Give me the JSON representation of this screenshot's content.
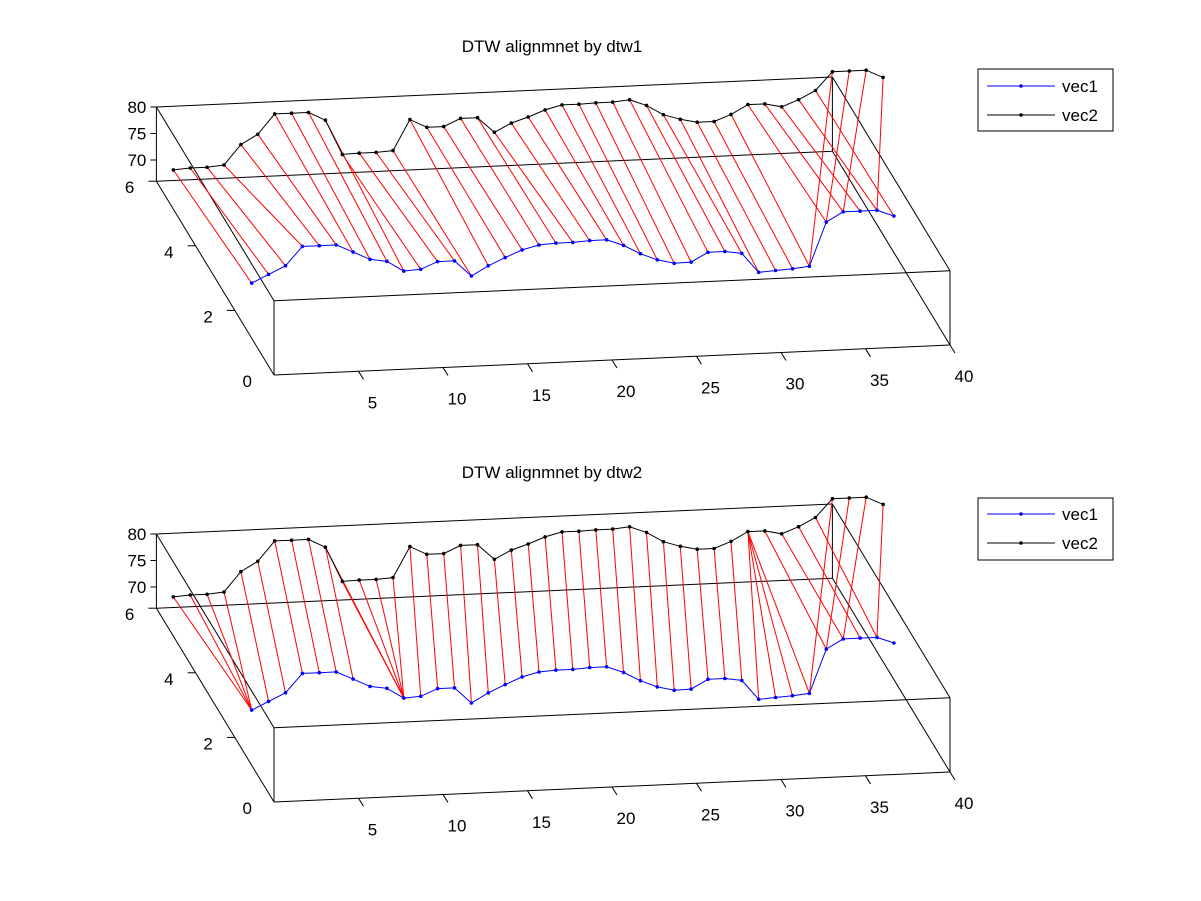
{
  "chart_data": [
    {
      "type": "line",
      "title": "DTW alignmnet by dtw1",
      "legend": {
        "placement": "top-right",
        "entries": [
          "vec1",
          "vec2"
        ]
      },
      "x_ticks": [
        "5",
        "10",
        "15",
        "20",
        "25",
        "30",
        "35",
        "40"
      ],
      "y_ticks": [
        "0",
        "2",
        "4",
        "6"
      ],
      "z_ticks": [
        "70",
        "75",
        "80"
      ],
      "xlim": [
        0,
        40
      ],
      "ylim": [
        0,
        6
      ],
      "zlim": [
        66,
        80
      ],
      "series": [
        {
          "name": "vec1",
          "color": "#0000ff",
          "y": 2,
          "values": [
            71,
            72.5,
            74,
            77.5,
            77.5,
            77.5,
            76,
            74.5,
            74,
            72,
            72.2,
            73.5,
            73.5,
            70.5,
            72.3,
            73.7,
            75,
            75.8,
            76,
            76,
            76.2,
            76.2,
            75,
            73.3,
            72,
            71.2,
            71.3,
            73,
            73,
            72.5,
            68.8,
            69,
            69.2,
            69.5,
            77.7,
            79.5,
            79.5,
            79.5,
            78.3
          ]
        },
        {
          "name": "vec2",
          "color": "#000000",
          "y": 6,
          "values": [
            68,
            68.2,
            68.2,
            68.5,
            72.2,
            74,
            77.7,
            77.7,
            77.7,
            76.1,
            69.5,
            69.6,
            69.6,
            69.8,
            75.5,
            73.9,
            73.9,
            75.3,
            75.3,
            72.4,
            74,
            75,
            76.2,
            77,
            77,
            77.1,
            77.1,
            77.4,
            76.2,
            74.3,
            73.3,
            72.6,
            72.6,
            73.8,
            75.5,
            75.5,
            74.8,
            76,
            77.6,
            81,
            81,
            81,
            79.5
          ]
        }
      ],
      "alignment_color": "#ff0000",
      "alignment": [
        [
          0,
          0
        ],
        [
          1,
          1
        ],
        [
          2,
          2
        ],
        [
          3,
          3
        ],
        [
          4,
          4
        ],
        [
          5,
          5
        ],
        [
          6,
          6
        ],
        [
          7,
          7
        ],
        [
          8,
          8
        ],
        [
          9,
          9
        ],
        [
          10,
          10
        ],
        [
          11,
          11
        ],
        [
          12,
          12
        ],
        [
          13,
          13
        ],
        [
          14,
          14
        ],
        [
          15,
          15
        ],
        [
          16,
          16
        ],
        [
          17,
          17
        ],
        [
          18,
          18
        ],
        [
          19,
          19
        ],
        [
          20,
          20
        ],
        [
          21,
          21
        ],
        [
          22,
          22
        ],
        [
          23,
          23
        ],
        [
          24,
          24
        ],
        [
          25,
          25
        ],
        [
          26,
          26
        ],
        [
          27,
          27
        ],
        [
          28,
          28
        ],
        [
          29,
          29
        ],
        [
          30,
          30
        ],
        [
          31,
          31
        ],
        [
          32,
          32
        ],
        [
          33,
          33
        ],
        [
          34,
          34
        ],
        [
          35,
          35
        ],
        [
          36,
          36
        ],
        [
          37,
          37
        ],
        [
          38,
          38
        ],
        [
          33,
          39
        ],
        [
          34,
          40
        ],
        [
          35,
          41
        ],
        [
          37,
          42
        ]
      ]
    },
    {
      "type": "line",
      "title": "DTW alignmnet by dtw2",
      "legend": {
        "placement": "top-right",
        "entries": [
          "vec1",
          "vec2"
        ]
      },
      "x_ticks": [
        "5",
        "10",
        "15",
        "20",
        "25",
        "30",
        "35",
        "40"
      ],
      "y_ticks": [
        "0",
        "2",
        "4",
        "6"
      ],
      "z_ticks": [
        "70",
        "75",
        "80"
      ],
      "xlim": [
        0,
        40
      ],
      "ylim": [
        0,
        6
      ],
      "zlim": [
        66,
        80
      ],
      "series": [
        {
          "name": "vec1",
          "color": "#0000ff",
          "y": 2,
          "values": [
            71,
            72.5,
            74,
            77.5,
            77.5,
            77.5,
            76,
            74.5,
            74,
            72,
            72.2,
            73.5,
            73.5,
            70.5,
            72.3,
            73.7,
            75,
            75.8,
            76,
            76,
            76.2,
            76.2,
            75,
            73.3,
            72,
            71.2,
            71.3,
            73,
            73,
            72.5,
            68.8,
            69,
            69.2,
            69.5,
            77.7,
            79.5,
            79.5,
            79.5,
            78.3
          ]
        },
        {
          "name": "vec2",
          "color": "#000000",
          "y": 6,
          "values": [
            68,
            68.2,
            68.2,
            68.5,
            72.2,
            74,
            77.7,
            77.7,
            77.7,
            76.1,
            69.5,
            69.6,
            69.6,
            69.8,
            75.5,
            73.9,
            73.9,
            75.3,
            75.3,
            72.4,
            74,
            75,
            76.2,
            77,
            77,
            77.1,
            77.1,
            77.4,
            76.2,
            74.3,
            73.3,
            72.6,
            72.6,
            73.8,
            75.5,
            75.5,
            74.8,
            76,
            77.6,
            81,
            81,
            81,
            79.5
          ]
        }
      ],
      "alignment_color": "#ff0000",
      "alignment": [
        [
          0,
          0
        ],
        [
          0,
          1
        ],
        [
          0,
          2
        ],
        [
          0,
          3
        ],
        [
          1,
          4
        ],
        [
          2,
          5
        ],
        [
          3,
          6
        ],
        [
          4,
          7
        ],
        [
          5,
          8
        ],
        [
          6,
          9
        ],
        [
          9,
          9
        ],
        [
          9,
          10
        ],
        [
          9,
          11
        ],
        [
          9,
          12
        ],
        [
          9,
          13
        ],
        [
          10,
          14
        ],
        [
          11,
          15
        ],
        [
          12,
          16
        ],
        [
          13,
          17
        ],
        [
          14,
          18
        ],
        [
          15,
          19
        ],
        [
          16,
          20
        ],
        [
          17,
          21
        ],
        [
          18,
          22
        ],
        [
          19,
          23
        ],
        [
          20,
          24
        ],
        [
          21,
          25
        ],
        [
          22,
          26
        ],
        [
          23,
          27
        ],
        [
          24,
          28
        ],
        [
          25,
          29
        ],
        [
          26,
          30
        ],
        [
          27,
          31
        ],
        [
          28,
          32
        ],
        [
          29,
          33
        ],
        [
          30,
          34
        ],
        [
          31,
          34
        ],
        [
          32,
          34
        ],
        [
          33,
          34
        ],
        [
          34,
          35
        ],
        [
          35,
          36
        ],
        [
          36,
          37
        ],
        [
          37,
          38
        ],
        [
          33,
          39
        ],
        [
          34,
          40
        ],
        [
          35,
          41
        ],
        [
          37,
          42
        ]
      ]
    }
  ]
}
